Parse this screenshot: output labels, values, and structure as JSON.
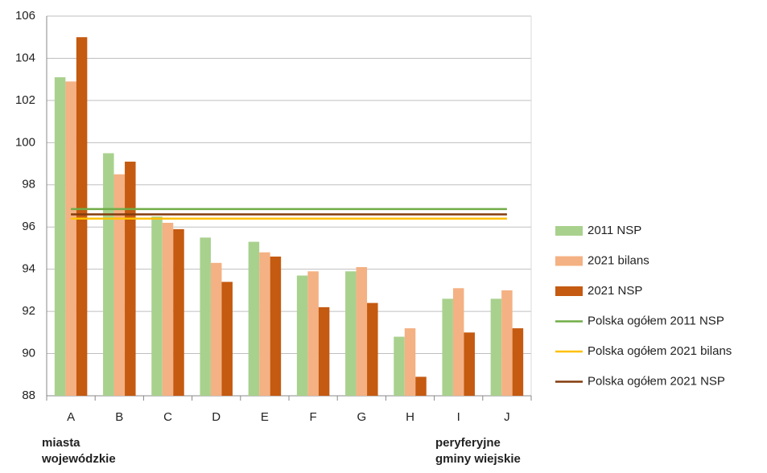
{
  "chart_data": {
    "type": "bar",
    "categories": [
      "A",
      "B",
      "C",
      "D",
      "E",
      "F",
      "G",
      "H",
      "I",
      "J"
    ],
    "series": [
      {
        "name": "2011 NSP",
        "type": "bar",
        "color": "#a9d18e",
        "values": [
          103.1,
          99.5,
          96.5,
          95.5,
          95.3,
          93.7,
          93.9,
          90.8,
          92.6,
          92.6
        ]
      },
      {
        "name": "2021 bilans",
        "type": "bar",
        "color": "#f4b183",
        "values": [
          102.9,
          98.5,
          96.2,
          94.3,
          94.8,
          93.9,
          94.1,
          91.2,
          93.1,
          93.0
        ]
      },
      {
        "name": "2021 NSP",
        "type": "bar",
        "color": "#c55a11",
        "values": [
          105.0,
          99.1,
          95.9,
          93.4,
          94.6,
          92.2,
          92.4,
          88.9,
          91.0,
          91.2
        ]
      },
      {
        "name": "Polska ogółem 2011 NSP",
        "type": "line",
        "color": "#70ad47",
        "values": [
          96.85,
          96.85,
          96.85,
          96.85,
          96.85,
          96.85,
          96.85,
          96.85,
          96.85,
          96.85
        ]
      },
      {
        "name": "Polska ogółem 2021 bilans",
        "type": "line",
        "color": "#ffc000",
        "values": [
          96.4,
          96.4,
          96.4,
          96.4,
          96.4,
          96.4,
          96.4,
          96.4,
          96.4,
          96.4
        ]
      },
      {
        "name": "Polska ogółem 2021 NSP",
        "type": "line",
        "color": "#843c0c",
        "values": [
          96.6,
          96.6,
          96.6,
          96.6,
          96.6,
          96.6,
          96.6,
          96.6,
          96.6,
          96.6
        ]
      }
    ],
    "ylim": [
      88,
      106
    ],
    "yticks": [
      88,
      90,
      92,
      94,
      96,
      98,
      100,
      102,
      104,
      106
    ],
    "grid": true,
    "annotations": [
      [
        "miasta",
        "wojewódzkie"
      ],
      [
        "peryferyjne",
        "gminy wiejskie"
      ]
    ]
  }
}
